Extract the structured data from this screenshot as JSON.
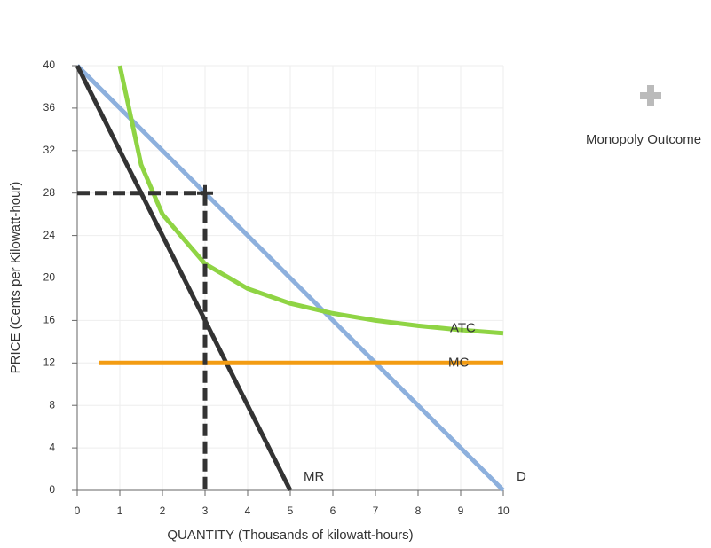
{
  "chart_data": {
    "type": "line",
    "xlabel": "QUANTITY (Thousands of kilowatt-hours)",
    "ylabel": "PRICE (Cents per Kilowatt-hour)",
    "xlim": [
      0,
      10
    ],
    "ylim": [
      0,
      40
    ],
    "xticks": [
      0,
      1,
      2,
      3,
      4,
      5,
      6,
      7,
      8,
      9,
      10
    ],
    "yticks": [
      0,
      4,
      8,
      12,
      16,
      20,
      24,
      28,
      32,
      36,
      40
    ],
    "grid": true,
    "series": [
      {
        "name": "D",
        "color": "#8db0dd",
        "x": [
          0,
          10
        ],
        "values": [
          40,
          0
        ]
      },
      {
        "name": "MR",
        "color": "#333333",
        "x": [
          0,
          5
        ],
        "values": [
          40,
          0
        ]
      },
      {
        "name": "MC",
        "color": "#f39c12",
        "x": [
          0.5,
          10
        ],
        "values": [
          12,
          12
        ]
      },
      {
        "name": "ATC",
        "color": "#8fd444",
        "x": [
          1,
          1.5,
          2,
          3,
          4,
          5,
          6,
          7,
          8,
          9,
          10
        ],
        "values": [
          40,
          30.67,
          26,
          21.33,
          19,
          17.6,
          16.67,
          16,
          15.5,
          15.11,
          14.8
        ]
      }
    ],
    "monopoly_outcome": {
      "label": "Monopoly Outcome",
      "x": 3,
      "y": 28
    }
  }
}
